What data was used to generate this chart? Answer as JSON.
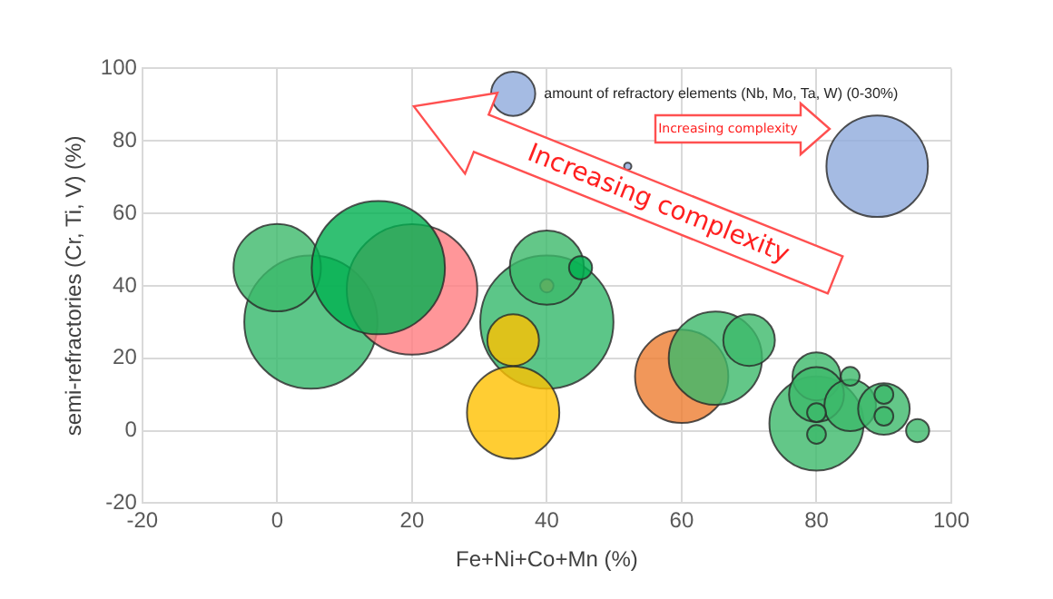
{
  "chart_data": {
    "type": "bubble",
    "xlabel": "Fe+Ni+Co+Mn (%)",
    "ylabel": "semi-refractories (Cr, Ti, V) (%)",
    "xlim": [
      -20,
      100
    ],
    "xticks": [
      -20,
      0,
      20,
      40,
      60,
      80,
      100
    ],
    "ylim": [
      -20,
      100
    ],
    "yticks": [
      -20,
      0,
      20,
      40,
      60,
      80,
      100
    ],
    "grid": true,
    "legend": false,
    "series": [
      {
        "color": "#33b86a",
        "x": [
          5,
          40
        ],
        "values": [
          30,
          30
        ],
        "sizes": [
          1,
          1
        ]
      },
      {
        "color": "#ed7d31",
        "x": [
          40,
          60
        ],
        "values": [
          40,
          15
        ],
        "sizes": [
          0.01,
          0.49
        ]
      },
      {
        "color": "#ff7c80",
        "x": [
          20
        ],
        "values": [
          39
        ],
        "sizes": [
          0.96
        ]
      },
      {
        "color": "#3cb96a",
        "x": [
          0,
          40,
          65,
          70,
          80,
          80,
          80,
          85,
          90,
          80,
          80,
          85,
          90,
          90,
          95
        ],
        "values": [
          45,
          45,
          20,
          25,
          2,
          15,
          10,
          7,
          6,
          5,
          -1,
          15,
          10,
          4,
          0
        ],
        "sizes": [
          0.43,
          0.31,
          0.49,
          0.15,
          0.5,
          0.13,
          0.17,
          0.15,
          0.15,
          0.02,
          0.02,
          0.02,
          0.02,
          0.02,
          0.03
        ]
      },
      {
        "color": "#00b050",
        "x": [
          15,
          45
        ],
        "values": [
          45,
          45
        ],
        "sizes": [
          1,
          0.03
        ]
      },
      {
        "color": "#ffc000",
        "x": [
          35,
          35
        ],
        "values": [
          25,
          5
        ],
        "sizes": [
          0.15,
          0.48
        ]
      },
      {
        "color": "#8faadc",
        "x": [
          35,
          52,
          89
        ],
        "values": [
          93,
          73,
          73
        ],
        "sizes": [
          0.11,
          0.003,
          0.58
        ]
      }
    ],
    "annotations": [
      {
        "text": "amount of refractory elements (Nb, Mo, Ta, W) (0-30%)",
        "x": 35,
        "y": 93
      },
      "Increasing complexity",
      "Increasing complexity"
    ]
  }
}
